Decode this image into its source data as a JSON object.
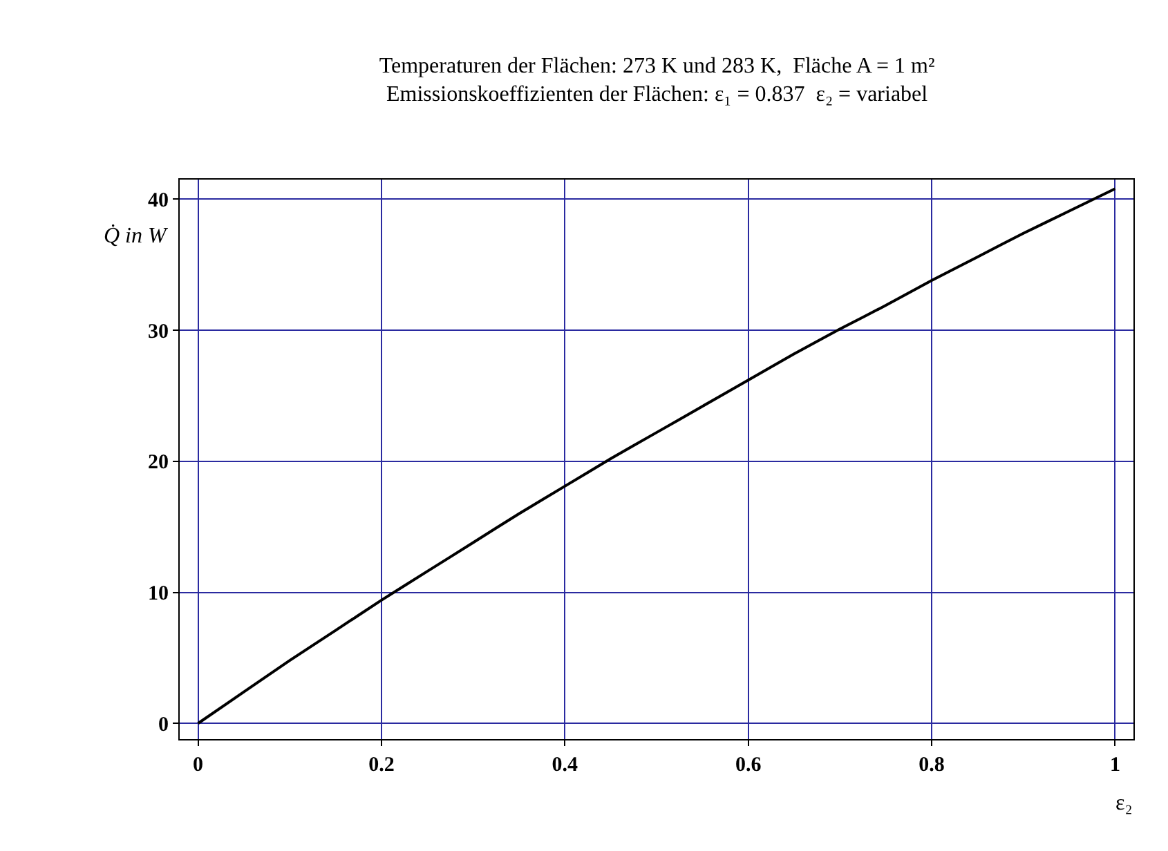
{
  "chart_data": {
    "type": "line",
    "title": "Temperaturen der Flächen: 273 K und 283 K,  Fläche A = 1 m²",
    "subtitle": "Emissionskoeffizienten der Flächen: ε₁ = 0.837  ε₂ = variabel",
    "xlabel": "ε₂",
    "ylabel": "Q̇ in W",
    "x": [
      0,
      0.05,
      0.1,
      0.15,
      0.2,
      0.25,
      0.3,
      0.35,
      0.4,
      0.45,
      0.5,
      0.55,
      0.6,
      0.65,
      0.7,
      0.75,
      0.8,
      0.85,
      0.9,
      0.95,
      1.0
    ],
    "series": [
      {
        "color": "#000000",
        "values": [
          0,
          2.4,
          4.8,
          7.1,
          9.4,
          11.6,
          13.8,
          16.0,
          18.1,
          20.2,
          22.2,
          24.2,
          26.2,
          28.2,
          30.1,
          31.9,
          33.8,
          35.6,
          37.4,
          39.1,
          40.8
        ]
      }
    ],
    "xlim": [
      -0.02,
      1.02
    ],
    "ylim": [
      -1.2,
      41.5
    ],
    "xticks": [
      0,
      0.2,
      0.4,
      0.6,
      0.8,
      1
    ],
    "yticks": [
      0,
      10,
      20,
      30,
      40
    ],
    "grid": true,
    "marker": "none",
    "line_style": "solid"
  }
}
